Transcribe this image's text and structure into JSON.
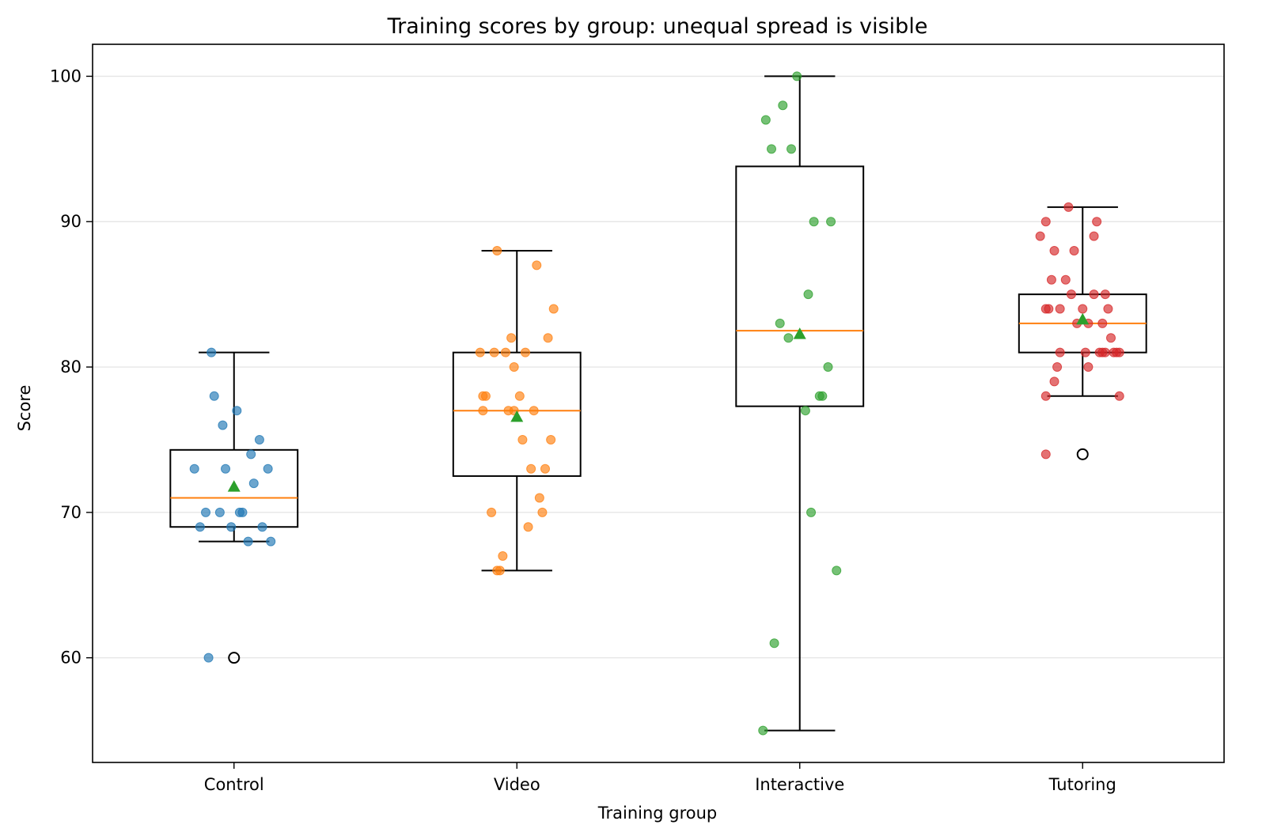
{
  "chart_data": {
    "type": "box",
    "title": "Training scores by group: unequal spread is visible",
    "xlabel": "Training group",
    "ylabel": "Score",
    "ylim": [
      52.8,
      102.2
    ],
    "yticks": [
      60,
      70,
      80,
      90,
      100
    ],
    "grid": "horizontal",
    "categories": [
      "Control",
      "Video",
      "Interactive",
      "Tutoring"
    ],
    "colors": {
      "Control": "#1f77b4",
      "Video": "#ff7f0e",
      "Interactive": "#2ca02c",
      "Tutoring": "#d62728",
      "median": "#ff7f0e",
      "mean_marker": "#2ca02c"
    },
    "boxes": [
      {
        "group": "Control",
        "whisker_low": 68,
        "q1": 69,
        "median": 71,
        "q3": 74.3,
        "whisker_high": 81,
        "mean": 71.8,
        "outliers": [
          60
        ]
      },
      {
        "group": "Video",
        "whisker_low": 66,
        "q1": 72.5,
        "median": 77,
        "q3": 81,
        "whisker_high": 88,
        "mean": 76.6,
        "outliers": []
      },
      {
        "group": "Interactive",
        "whisker_low": 55,
        "q1": 77.3,
        "median": 82.5,
        "q3": 93.8,
        "whisker_high": 100,
        "mean": 82.3,
        "outliers": []
      },
      {
        "group": "Tutoring",
        "whisker_low": 78,
        "q1": 81,
        "median": 83,
        "q3": 85,
        "whisker_high": 91,
        "mean": 83.3,
        "outliers": [
          74
        ]
      }
    ],
    "points": {
      "Control": [
        [
          -0.08,
          81
        ],
        [
          -0.07,
          78
        ],
        [
          0.01,
          77
        ],
        [
          -0.04,
          76
        ],
        [
          0.09,
          75
        ],
        [
          0.06,
          74
        ],
        [
          -0.14,
          73
        ],
        [
          -0.03,
          73
        ],
        [
          0.12,
          73
        ],
        [
          0.07,
          72
        ],
        [
          -0.1,
          70
        ],
        [
          -0.05,
          70
        ],
        [
          0.02,
          70
        ],
        [
          0.03,
          70
        ],
        [
          -0.12,
          69
        ],
        [
          -0.01,
          69
        ],
        [
          0.1,
          69
        ],
        [
          0.05,
          68
        ],
        [
          0.13,
          68
        ],
        [
          -0.09,
          60
        ]
      ],
      "Video": [
        [
          -0.07,
          88
        ],
        [
          0.07,
          87
        ],
        [
          0.13,
          84
        ],
        [
          -0.02,
          82
        ],
        [
          0.11,
          82
        ],
        [
          -0.13,
          81
        ],
        [
          -0.08,
          81
        ],
        [
          -0.04,
          81
        ],
        [
          0.03,
          81
        ],
        [
          -0.01,
          80
        ],
        [
          -0.12,
          78
        ],
        [
          -0.11,
          78
        ],
        [
          0.01,
          78
        ],
        [
          -0.03,
          77
        ],
        [
          -0.12,
          77
        ],
        [
          0.06,
          77
        ],
        [
          -0.01,
          77
        ],
        [
          0.02,
          75
        ],
        [
          0.12,
          75
        ],
        [
          0.05,
          73
        ],
        [
          0.1,
          73
        ],
        [
          0.08,
          71
        ],
        [
          -0.09,
          70
        ],
        [
          0.09,
          70
        ],
        [
          0.04,
          69
        ],
        [
          -0.05,
          67
        ],
        [
          -0.06,
          66
        ],
        [
          -0.07,
          66
        ]
      ],
      "Interactive": [
        [
          -0.01,
          100
        ],
        [
          -0.06,
          98
        ],
        [
          -0.12,
          97
        ],
        [
          -0.1,
          95
        ],
        [
          -0.03,
          95
        ],
        [
          0.05,
          90
        ],
        [
          0.11,
          90
        ],
        [
          0.03,
          85
        ],
        [
          -0.07,
          83
        ],
        [
          -0.04,
          82
        ],
        [
          0.1,
          80
        ],
        [
          0.08,
          78
        ],
        [
          0.07,
          78
        ],
        [
          0.02,
          77
        ],
        [
          0.04,
          70
        ],
        [
          0.13,
          66
        ],
        [
          -0.09,
          61
        ],
        [
          -0.13,
          55
        ]
      ],
      "Tutoring": [
        [
          -0.05,
          91
        ],
        [
          -0.13,
          90
        ],
        [
          0.05,
          90
        ],
        [
          -0.15,
          89
        ],
        [
          0.04,
          89
        ],
        [
          -0.1,
          88
        ],
        [
          -0.03,
          88
        ],
        [
          -0.11,
          86
        ],
        [
          -0.06,
          86
        ],
        [
          -0.04,
          85
        ],
        [
          0.04,
          85
        ],
        [
          0.08,
          85
        ],
        [
          -0.13,
          84
        ],
        [
          -0.12,
          84
        ],
        [
          -0.08,
          84
        ],
        [
          0.0,
          84
        ],
        [
          0.09,
          84
        ],
        [
          -0.02,
          83
        ],
        [
          0.07,
          83
        ],
        [
          0.02,
          83
        ],
        [
          0.1,
          82
        ],
        [
          -0.08,
          81
        ],
        [
          0.01,
          81
        ],
        [
          0.06,
          81
        ],
        [
          0.07,
          81
        ],
        [
          0.08,
          81
        ],
        [
          0.11,
          81
        ],
        [
          0.12,
          81
        ],
        [
          0.13,
          81
        ],
        [
          -0.09,
          80
        ],
        [
          0.02,
          80
        ],
        [
          -0.1,
          79
        ],
        [
          -0.13,
          78
        ],
        [
          0.13,
          78
        ],
        [
          -0.13,
          74
        ]
      ]
    }
  }
}
